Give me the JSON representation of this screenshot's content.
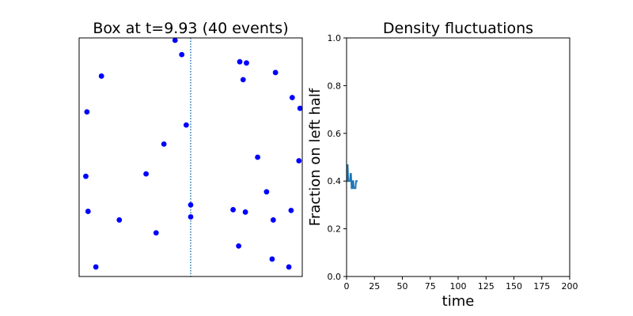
{
  "chart_data": [
    {
      "type": "scatter",
      "title": "Box at t=9.93 (40 events)",
      "xlim": [
        0,
        1
      ],
      "ylim": [
        0,
        1
      ],
      "xticks": false,
      "yticks": false,
      "divider_x": 0.5,
      "marker_color": "#0000ff",
      "divider_color": "#1f77b4",
      "points": [
        {
          "x": 0.43,
          "y": 0.99
        },
        {
          "x": 0.46,
          "y": 0.93
        },
        {
          "x": 0.72,
          "y": 0.9
        },
        {
          "x": 0.75,
          "y": 0.895
        },
        {
          "x": 0.1,
          "y": 0.84
        },
        {
          "x": 0.88,
          "y": 0.855
        },
        {
          "x": 0.735,
          "y": 0.825
        },
        {
          "x": 0.955,
          "y": 0.75
        },
        {
          "x": 0.99,
          "y": 0.705
        },
        {
          "x": 0.035,
          "y": 0.69
        },
        {
          "x": 0.48,
          "y": 0.635
        },
        {
          "x": 0.38,
          "y": 0.555
        },
        {
          "x": 0.8,
          "y": 0.5
        },
        {
          "x": 0.985,
          "y": 0.485
        },
        {
          "x": 0.3,
          "y": 0.43
        },
        {
          "x": 0.03,
          "y": 0.42
        },
        {
          "x": 0.84,
          "y": 0.355
        },
        {
          "x": 0.5,
          "y": 0.3
        },
        {
          "x": 0.69,
          "y": 0.28
        },
        {
          "x": 0.745,
          "y": 0.27
        },
        {
          "x": 0.95,
          "y": 0.277
        },
        {
          "x": 0.04,
          "y": 0.273
        },
        {
          "x": 0.5,
          "y": 0.25
        },
        {
          "x": 0.18,
          "y": 0.237
        },
        {
          "x": 0.87,
          "y": 0.237
        },
        {
          "x": 0.345,
          "y": 0.183
        },
        {
          "x": 0.715,
          "y": 0.128
        },
        {
          "x": 0.865,
          "y": 0.073
        },
        {
          "x": 0.075,
          "y": 0.04
        },
        {
          "x": 0.94,
          "y": 0.04
        }
      ]
    },
    {
      "type": "line",
      "title": "Density fluctuations",
      "xlabel": "time",
      "ylabel": "Fraction on left half",
      "xlim": [
        0,
        200
      ],
      "ylim": [
        0,
        1
      ],
      "xticks": [
        0,
        25,
        50,
        75,
        100,
        125,
        150,
        175,
        200
      ],
      "yticks": [
        0.0,
        0.2,
        0.4,
        0.6,
        0.8,
        1.0
      ],
      "xtick_labels": [
        "0",
        "25",
        "50",
        "75",
        "100",
        "125",
        "150",
        "175",
        "200"
      ],
      "ytick_labels": [
        "0.0",
        "0.2",
        "0.4",
        "0.6",
        "0.8",
        "1.0"
      ],
      "line_color": "#1f77b4",
      "series": [
        {
          "x": [
            0,
            0.5,
            1.0,
            1.5,
            2.0,
            2.5,
            3.0,
            3.5,
            4.0,
            4.5,
            5.0,
            5.5,
            6.0,
            6.5,
            7.0,
            7.5,
            8.0,
            8.5,
            9.0,
            9.5,
            9.93
          ],
          "y": [
            0.4,
            0.4,
            0.47,
            0.4,
            0.4,
            0.4,
            0.4,
            0.43,
            0.43,
            0.37,
            0.37,
            0.4,
            0.4,
            0.37,
            0.37,
            0.37,
            0.37,
            0.4,
            0.4,
            0.4,
            0.4
          ]
        }
      ]
    }
  ]
}
